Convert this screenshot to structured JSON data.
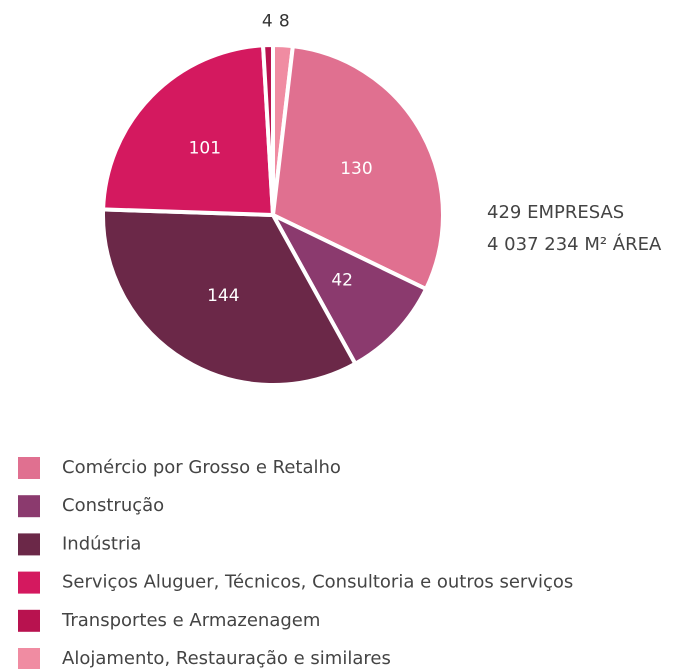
{
  "chart_data": {
    "type": "pie",
    "categories": [
      "Comércio por Grosso e Retalho",
      "Construção",
      "Indústria",
      "Serviços Aluguer, Técnicos, Consultoria e outros serviços",
      "Transportes e Armazenagem",
      "Alojamento, Restauração e similares"
    ],
    "values": [
      130,
      42,
      144,
      101,
      4,
      8
    ],
    "colors": [
      "#e07090",
      "#8b3a6e",
      "#6b2848",
      "#d4195f",
      "#b8124f",
      "#f08ca2"
    ],
    "annotations": [
      "429 EMPRESAS",
      "4 037 234 M² ÁREA"
    ]
  }
}
